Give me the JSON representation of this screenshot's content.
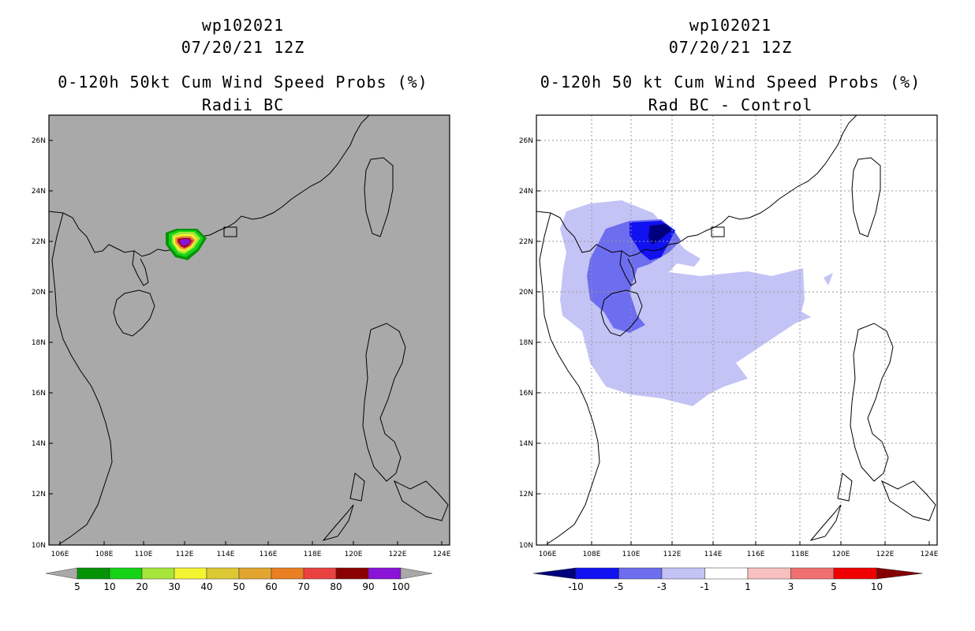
{
  "left_panel": {
    "storm_id": "wp102021",
    "datetime": "07/20/21 12Z",
    "title": "0-120h 50kt Cum Wind Speed Probs (%)",
    "subtitle": "Radii BC",
    "colorbar": {
      "labels": [
        "5",
        "10",
        "20",
        "30",
        "40",
        "50",
        "60",
        "70",
        "80",
        "90",
        "100"
      ],
      "colors": [
        "#069306",
        "#16d316",
        "#a6e63a",
        "#f4f432",
        "#dcc832",
        "#e1a530",
        "#ea8023",
        "#eb4141",
        "#8b0000",
        "#8a13d8"
      ]
    }
  },
  "right_panel": {
    "storm_id": "wp102021",
    "datetime": "07/20/21 12Z",
    "title": "0-120h 50 kt Cum Wind Speed Probs (%)",
    "subtitle": "Rad BC - Control",
    "colorbar": {
      "labels": [
        "-10",
        "-5",
        "-3",
        "-1",
        "1",
        "3",
        "5",
        "10"
      ],
      "colors": [
        "#00007e",
        "#1010f0",
        "#6d6def",
        "#c3c3f6",
        "#ffffff",
        "#f8c0c0",
        "#f07070",
        "#f00000",
        "#840000"
      ]
    }
  },
  "axes": {
    "lat_labels": [
      "26N",
      "24N",
      "22N",
      "20N",
      "18N",
      "16N",
      "14N",
      "12N",
      "10N"
    ],
    "lon_labels": [
      "106E",
      "108E",
      "110E",
      "112E",
      "114E",
      "116E",
      "118E",
      "120E",
      "122E",
      "124E"
    ]
  }
}
